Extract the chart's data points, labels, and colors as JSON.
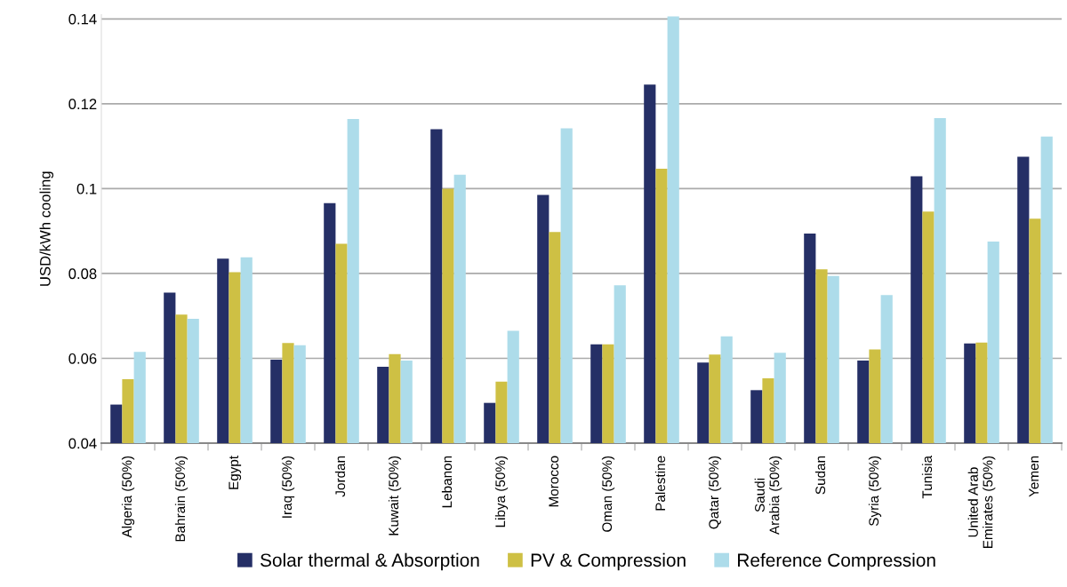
{
  "chart_data": {
    "type": "bar",
    "ylabel": "USD/kWh cooling",
    "categories": [
      "Algeria (50%)",
      "Bahrain (50%)",
      "Egypt",
      "Iraq (50%)",
      "Jordan",
      "Kuwait (50%)",
      "Lebanon",
      "Libya (50%)",
      "Morocco",
      "Oman (50%)",
      "Palestine",
      "Qatar (50%)",
      "Saudi\nArabia (50%)",
      "Sudan",
      "Syria (50%)",
      "Tunisia",
      "United Arab\nEmirates (50%)",
      "Yemen"
    ],
    "series": [
      {
        "name": "Solar thermal & Absorption",
        "color": "#252f66",
        "values": [
          0.0491,
          0.0755,
          0.0835,
          0.0597,
          0.0966,
          0.058,
          0.114,
          0.0495,
          0.0985,
          0.0633,
          0.1245,
          0.059,
          0.0525,
          0.0894,
          0.0595,
          0.1029,
          0.0635,
          0.1075
        ]
      },
      {
        "name": "PV & Compression",
        "color": "#cec044",
        "values": [
          0.0551,
          0.0703,
          0.0803,
          0.0636,
          0.087,
          0.061,
          0.1,
          0.0545,
          0.0898,
          0.0633,
          0.1047,
          0.0609,
          0.0553,
          0.081,
          0.0621,
          0.0946,
          0.0637,
          0.0929
        ]
      },
      {
        "name": "Reference Compression",
        "color": "#addcea",
        "values": [
          0.0615,
          0.0693,
          0.0838,
          0.0631,
          0.1164,
          0.0595,
          0.1033,
          0.0665,
          0.1142,
          0.0772,
          0.1406,
          0.0652,
          0.0613,
          0.0794,
          0.0749,
          0.1166,
          0.0875,
          0.1123
        ]
      }
    ],
    "ylim": [
      0.04,
      0.141
    ],
    "yticks": [
      0.04,
      0.06,
      0.08,
      0.1,
      0.12,
      0.14
    ],
    "grid": "y",
    "legend": "bottom"
  }
}
